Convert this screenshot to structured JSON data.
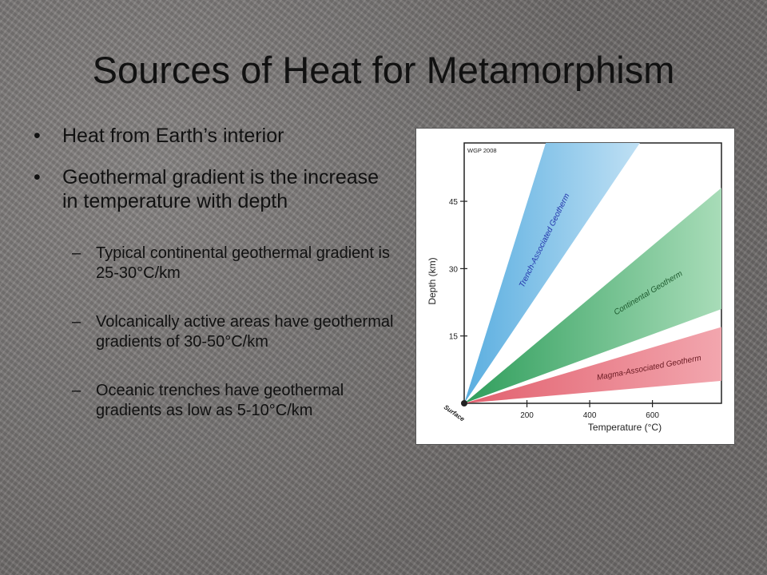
{
  "slide": {
    "title": "Sources of Heat for Metamorphism",
    "bullets": [
      {
        "mark": "•",
        "text": "Heat from Earth’s interior"
      },
      {
        "mark": "•",
        "text": "Geothermal gradient is the increase in temperature with depth"
      }
    ],
    "sub_bullets": [
      {
        "mark": "–",
        "text": "Typical continental geothermal gradient is 25-30°C/km"
      },
      {
        "mark": "–",
        "text": "Volcanically active areas have geothermal gradients of 30-50°C/km"
      },
      {
        "mark": "–",
        "text": "Oceanic trenches have geothermal gradients as low as 5-10°C/km"
      }
    ]
  },
  "figure": {
    "credit": "WGP 2008",
    "origin_label": "Surface",
    "colors": {
      "trench": "#5aaee0",
      "continental": "#3aa565",
      "magma": "#e06070"
    },
    "chart_data": {
      "type": "area",
      "xlabel": "Temperature (°C)",
      "ylabel": "Depth (km)",
      "x_ticks": [
        200,
        400,
        600
      ],
      "y_ticks": [
        15,
        30,
        45
      ],
      "xlim": [
        0,
        820
      ],
      "ylim": [
        0,
        58
      ],
      "series": [
        {
          "name": "Trench-Associated Geotherm",
          "band": [
            {
              "x": 260,
              "y": 58
            },
            {
              "x": 560,
              "y": 58
            }
          ]
        },
        {
          "name": "Continental Geotherm",
          "band": [
            {
              "x": 820,
              "y": 21
            },
            {
              "x": 820,
              "y": 48
            }
          ]
        },
        {
          "name": "Magma-Associated Geotherm",
          "band": [
            {
              "x": 820,
              "y": 5
            },
            {
              "x": 820,
              "y": 17
            }
          ]
        }
      ]
    }
  }
}
